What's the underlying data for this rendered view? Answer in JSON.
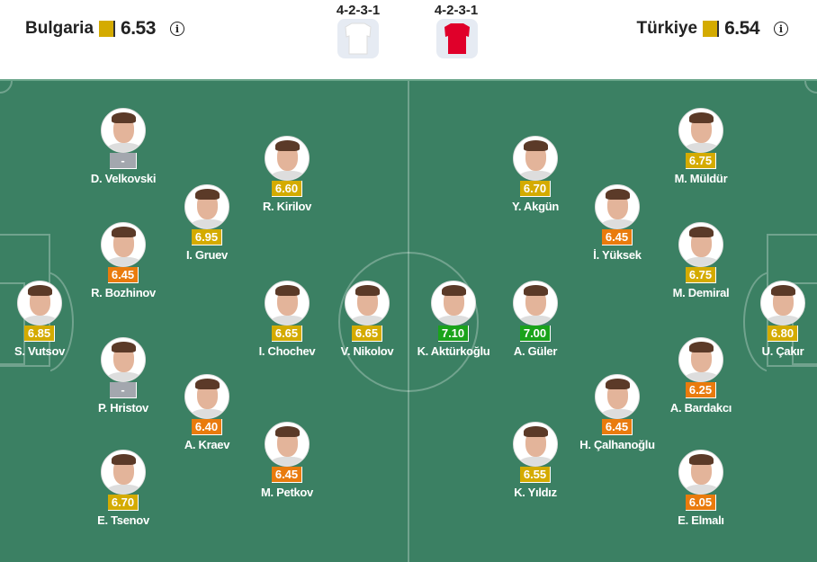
{
  "home": {
    "name": "Bulgaria",
    "rating": "6.53",
    "formation": "4-2-3-1",
    "kit_color": "#ffffff"
  },
  "away": {
    "name": "Türkiye",
    "rating": "6.54",
    "formation": "4-2-3-1",
    "kit_color": "#e0002a"
  },
  "colors": {
    "pitch": "#3b8063",
    "rating_yellow": "#d4ab00",
    "rating_orange": "#e97b0d",
    "rating_green": "#1aa31a",
    "rating_none": "#a3a7ae"
  },
  "players": [
    {
      "name": "S. Vutsov",
      "rating": "6.85",
      "team": "home"
    },
    {
      "name": "D. Velkovski",
      "rating": "-",
      "team": "home"
    },
    {
      "name": "R. Bozhinov",
      "rating": "6.45",
      "team": "home"
    },
    {
      "name": "P. Hristov",
      "rating": "-",
      "team": "home"
    },
    {
      "name": "E. Tsenov",
      "rating": "6.70",
      "team": "home"
    },
    {
      "name": "I. Gruev",
      "rating": "6.95",
      "team": "home"
    },
    {
      "name": "A. Kraev",
      "rating": "6.40",
      "team": "home"
    },
    {
      "name": "R. Kirilov",
      "rating": "6.60",
      "team": "home"
    },
    {
      "name": "I. Chochev",
      "rating": "6.65",
      "team": "home"
    },
    {
      "name": "M. Petkov",
      "rating": "6.45",
      "team": "home"
    },
    {
      "name": "V. Nikolov",
      "rating": "6.65",
      "team": "home"
    },
    {
      "name": "K. Aktürkoğlu",
      "rating": "7.10",
      "team": "away"
    },
    {
      "name": "A. Güler",
      "rating": "7.00",
      "team": "away"
    },
    {
      "name": "Y. Akgün",
      "rating": "6.70",
      "team": "away"
    },
    {
      "name": "K. Yıldız",
      "rating": "6.55",
      "team": "away"
    },
    {
      "name": "İ. Yüksek",
      "rating": "6.45",
      "team": "away"
    },
    {
      "name": "H. Çalhanoğlu",
      "rating": "6.45",
      "team": "away"
    },
    {
      "name": "M. Müldür",
      "rating": "6.75",
      "team": "away"
    },
    {
      "name": "M. Demiral",
      "rating": "6.75",
      "team": "away"
    },
    {
      "name": "A. Bardakcı",
      "rating": "6.25",
      "team": "away"
    },
    {
      "name": "E. Elmalı",
      "rating": "6.05",
      "team": "away"
    },
    {
      "name": "U. Çakır",
      "rating": "6.80",
      "team": "away"
    }
  ]
}
